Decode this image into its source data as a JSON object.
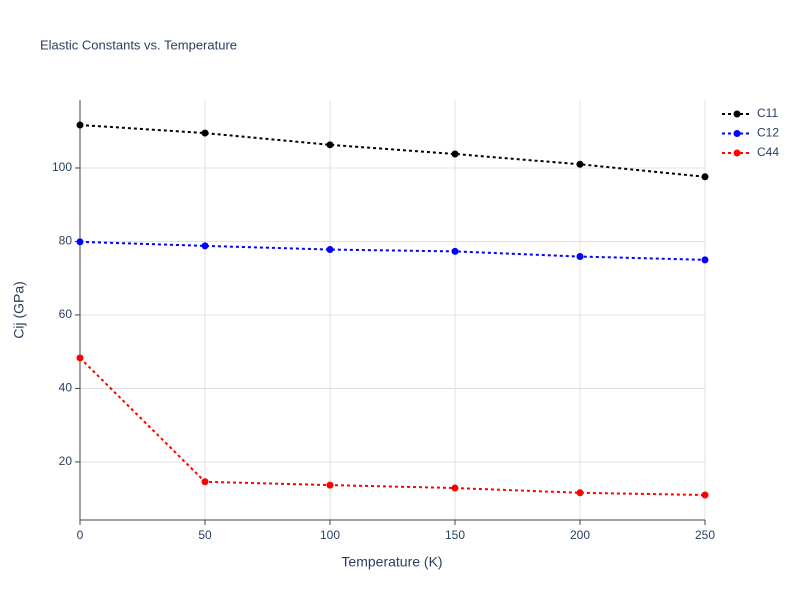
{
  "chart_data": {
    "type": "line",
    "title": "Elastic Constants vs. Temperature",
    "x_label": "Temperature (K)",
    "y_label": "Cij (GPa)",
    "x": [
      0,
      50,
      100,
      150,
      200,
      250
    ],
    "series": [
      {
        "name": "C11",
        "color": "#000000",
        "values": [
          111.7,
          109.5,
          106.3,
          103.8,
          101.0,
          97.6
        ]
      },
      {
        "name": "C12",
        "color": "#0000ff",
        "values": [
          79.9,
          78.8,
          77.8,
          77.3,
          75.9,
          75.0
        ]
      },
      {
        "name": "C44",
        "color": "#ff0000",
        "values": [
          48.3,
          14.6,
          13.7,
          12.9,
          11.6,
          11.0
        ]
      }
    ],
    "xlim": [
      0,
      250
    ],
    "xticks": [
      0,
      50,
      100,
      150,
      200,
      250
    ],
    "ylim": [
      4.2,
      118.5
    ],
    "yticks": [
      20,
      40,
      60,
      80,
      100
    ],
    "grid": true,
    "legend": "top-right"
  }
}
